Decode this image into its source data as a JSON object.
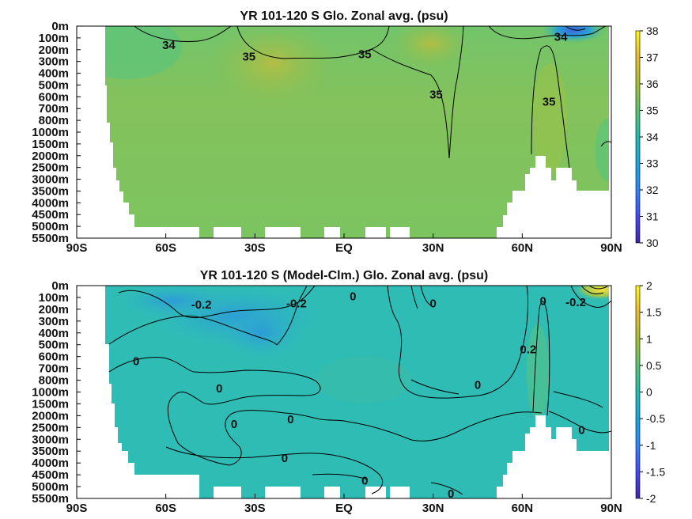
{
  "chart_data": [
    {
      "type": "heatmap",
      "title": "YR 101-120 S Glo. Zonal avg. (psu)",
      "x_ticks": [
        "90S",
        "60S",
        "30S",
        "EQ",
        "30N",
        "60N",
        "90N"
      ],
      "y_ticks": [
        "0m",
        "100m",
        "200m",
        "300m",
        "400m",
        "500m",
        "600m",
        "700m",
        "800m",
        "1000m",
        "1500m",
        "2000m",
        "2500m",
        "3000m",
        "3500m",
        "4000m",
        "4500m",
        "5000m",
        "5500m"
      ],
      "xlim": [
        -90,
        90
      ],
      "colorbar": {
        "range": [
          30,
          38
        ],
        "ticks": [
          "38",
          "37",
          "36",
          "35",
          "34",
          "33",
          "32",
          "31",
          "30"
        ]
      },
      "contour_labels": [
        {
          "text": "34",
          "lat": -59,
          "depth_idx": 1.6
        },
        {
          "text": "35",
          "lat": -32,
          "depth_idx": 2.6
        },
        {
          "text": "35",
          "lat": 7,
          "depth_idx": 2.4
        },
        {
          "text": "35",
          "lat": 31,
          "depth_idx": 5.8
        },
        {
          "text": "34",
          "lat": 73,
          "depth_idx": 0.9
        },
        {
          "text": "35",
          "lat": 69,
          "depth_idx": 6.4
        }
      ]
    },
    {
      "type": "heatmap",
      "title": "YR 101-120 S (Model-Clm.) Glo. Zonal avg. (psu)",
      "x_ticks": [
        "90S",
        "60S",
        "30S",
        "EQ",
        "30N",
        "60N",
        "90N"
      ],
      "y_ticks": [
        "0m",
        "100m",
        "200m",
        "300m",
        "400m",
        "500m",
        "600m",
        "700m",
        "800m",
        "1000m",
        "1500m",
        "2000m",
        "2500m",
        "3000m",
        "3500m",
        "4000m",
        "4500m",
        "5000m",
        "5500m"
      ],
      "xlim": [
        -90,
        90
      ],
      "colorbar": {
        "range": [
          -2,
          2
        ],
        "ticks": [
          "2",
          "1.5",
          "1",
          "0.5",
          "0",
          "-0.5",
          "-1",
          "-1.5",
          "-2"
        ]
      },
      "contour_labels": [
        {
          "text": "-0.2",
          "lat": -48,
          "depth_idx": 1.6
        },
        {
          "text": "-0.2",
          "lat": -16,
          "depth_idx": 1.5
        },
        {
          "text": "0",
          "lat": -70,
          "depth_idx": 6.4
        },
        {
          "text": "0",
          "lat": -42,
          "depth_idx": 8.7
        },
        {
          "text": "0",
          "lat": -37,
          "depth_idx": 11.7
        },
        {
          "text": "0",
          "lat": -18,
          "depth_idx": 11.3
        },
        {
          "text": "0",
          "lat": -20,
          "depth_idx": 14.6
        },
        {
          "text": "0",
          "lat": 3,
          "depth_idx": 0.9
        },
        {
          "text": "0",
          "lat": 30,
          "depth_idx": 1.5
        },
        {
          "text": "0",
          "lat": 45,
          "depth_idx": 8.4
        },
        {
          "text": "0",
          "lat": 67,
          "depth_idx": 1.3
        },
        {
          "text": "-0.2",
          "lat": 78,
          "depth_idx": 1.4
        },
        {
          "text": "0.2",
          "lat": 62,
          "depth_idx": 5.4
        },
        {
          "text": "0",
          "lat": 80,
          "depth_idx": 12.2
        },
        {
          "text": "0",
          "lat": 7,
          "depth_idx": 16.5
        },
        {
          "text": "0",
          "lat": 36,
          "depth_idx": 17.6
        }
      ]
    }
  ]
}
